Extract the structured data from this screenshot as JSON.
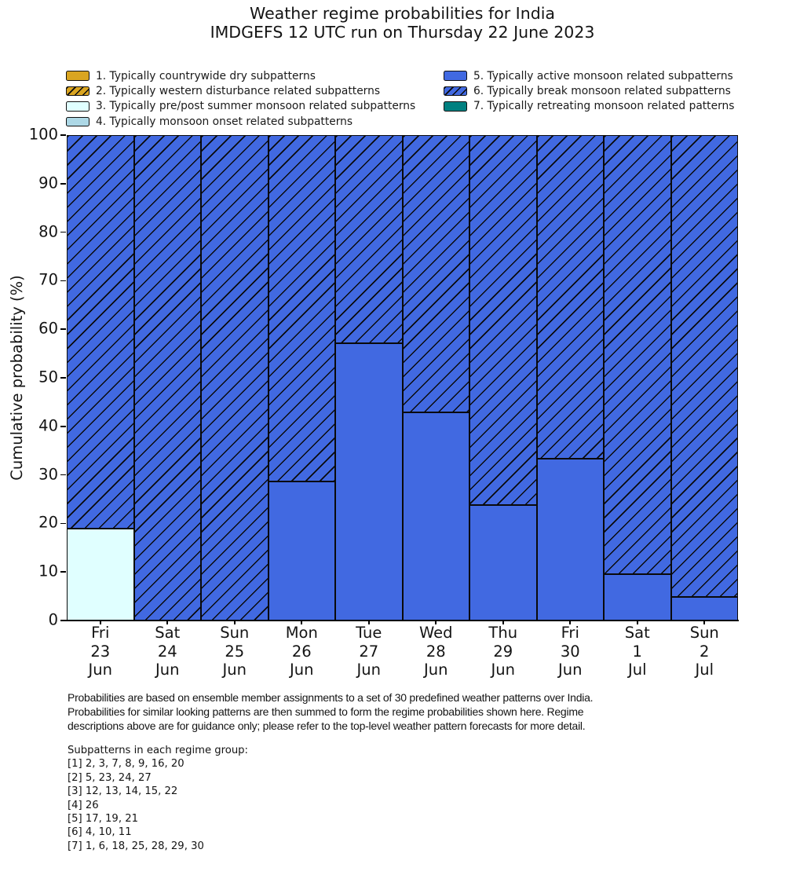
{
  "chart_data": {
    "type": "bar",
    "stacked": true,
    "title": "Weather regime probabilities for India",
    "subtitle": "IMDGEFS 12 UTC run on Thursday 22 June 2023",
    "ylabel": "Cumulative probability (%)",
    "ylim": [
      0,
      100
    ],
    "yticks": [
      0,
      10,
      20,
      30,
      40,
      50,
      60,
      70,
      80,
      90,
      100
    ],
    "grid": false,
    "legend_position": "top, two columns (items 1-4 left, 5-7 right)",
    "categories": [
      {
        "dow": "Fri",
        "day": "23",
        "month": "Jun"
      },
      {
        "dow": "Sat",
        "day": "24",
        "month": "Jun"
      },
      {
        "dow": "Sun",
        "day": "25",
        "month": "Jun"
      },
      {
        "dow": "Mon",
        "day": "26",
        "month": "Jun"
      },
      {
        "dow": "Tue",
        "day": "27",
        "month": "Jun"
      },
      {
        "dow": "Wed",
        "day": "28",
        "month": "Jun"
      },
      {
        "dow": "Thu",
        "day": "29",
        "month": "Jun"
      },
      {
        "dow": "Fri",
        "day": "30",
        "month": "Jun"
      },
      {
        "dow": "Sat",
        "day": "1",
        "month": "Jul"
      },
      {
        "dow": "Sun",
        "day": "2",
        "month": "Jul"
      }
    ],
    "series": [
      {
        "name": "1. Typically countrywide dry subpatterns",
        "color": "#DAA520",
        "hatch": false,
        "values": [
          0,
          0,
          0,
          0,
          0,
          0,
          0,
          0,
          0,
          0
        ]
      },
      {
        "name": "2. Typically western disturbance related subpatterns",
        "color": "#DAA520",
        "hatch": true,
        "values": [
          0,
          0,
          0,
          0,
          0,
          0,
          0,
          0,
          0,
          0
        ]
      },
      {
        "name": "3. Typically pre/post summer monsoon related subpatterns",
        "color": "#E0FFFF",
        "hatch": false,
        "values": [
          19,
          0,
          0,
          0,
          0,
          0,
          0,
          0,
          0,
          0
        ]
      },
      {
        "name": "4. Typically monsoon onset related subpatterns",
        "color": "#ADD8E6",
        "hatch": false,
        "values": [
          0,
          0,
          0,
          0,
          0,
          0,
          0,
          0,
          0,
          0
        ]
      },
      {
        "name": "5. Typically active monsoon related subpatterns",
        "color": "#4169E1",
        "hatch": false,
        "values": [
          0,
          0,
          0,
          28.6,
          57.1,
          42.9,
          23.8,
          33.3,
          9.5,
          4.8
        ]
      },
      {
        "name": "6. Typically break monsoon related subpatterns",
        "color": "#4169E1",
        "hatch": true,
        "values": [
          81,
          100,
          100,
          71.4,
          42.9,
          57.1,
          76.2,
          66.7,
          90.5,
          95.2
        ]
      },
      {
        "name": "7. Typically retreating monsoon related patterns",
        "color": "#008080",
        "hatch": false,
        "values": [
          0,
          0,
          0,
          0,
          0,
          0,
          0,
          0,
          0,
          0
        ]
      }
    ]
  },
  "footer": {
    "paragraph_lines": [
      "Probabilities are based on ensemble member assignments to a set of 30 predefined weather patterns over India.",
      "Probabilities for similar looking patterns are then summed to form the regime probabilities shown here. Regime",
      "descriptions above are for guidance only; please refer to the top-level weather pattern forecasts for more detail."
    ],
    "subpatterns_heading": "Subpatterns in each regime group:",
    "subpattern_groups": [
      "[1] 2, 3, 7, 8, 9, 16, 20",
      "[2] 5, 23, 24, 27",
      "[3] 12, 13, 14, 15, 22",
      "[4] 26",
      "[5] 17, 19, 21",
      "[6] 4, 10, 11",
      "[7] 1, 6, 18, 25, 28, 29, 30"
    ]
  }
}
